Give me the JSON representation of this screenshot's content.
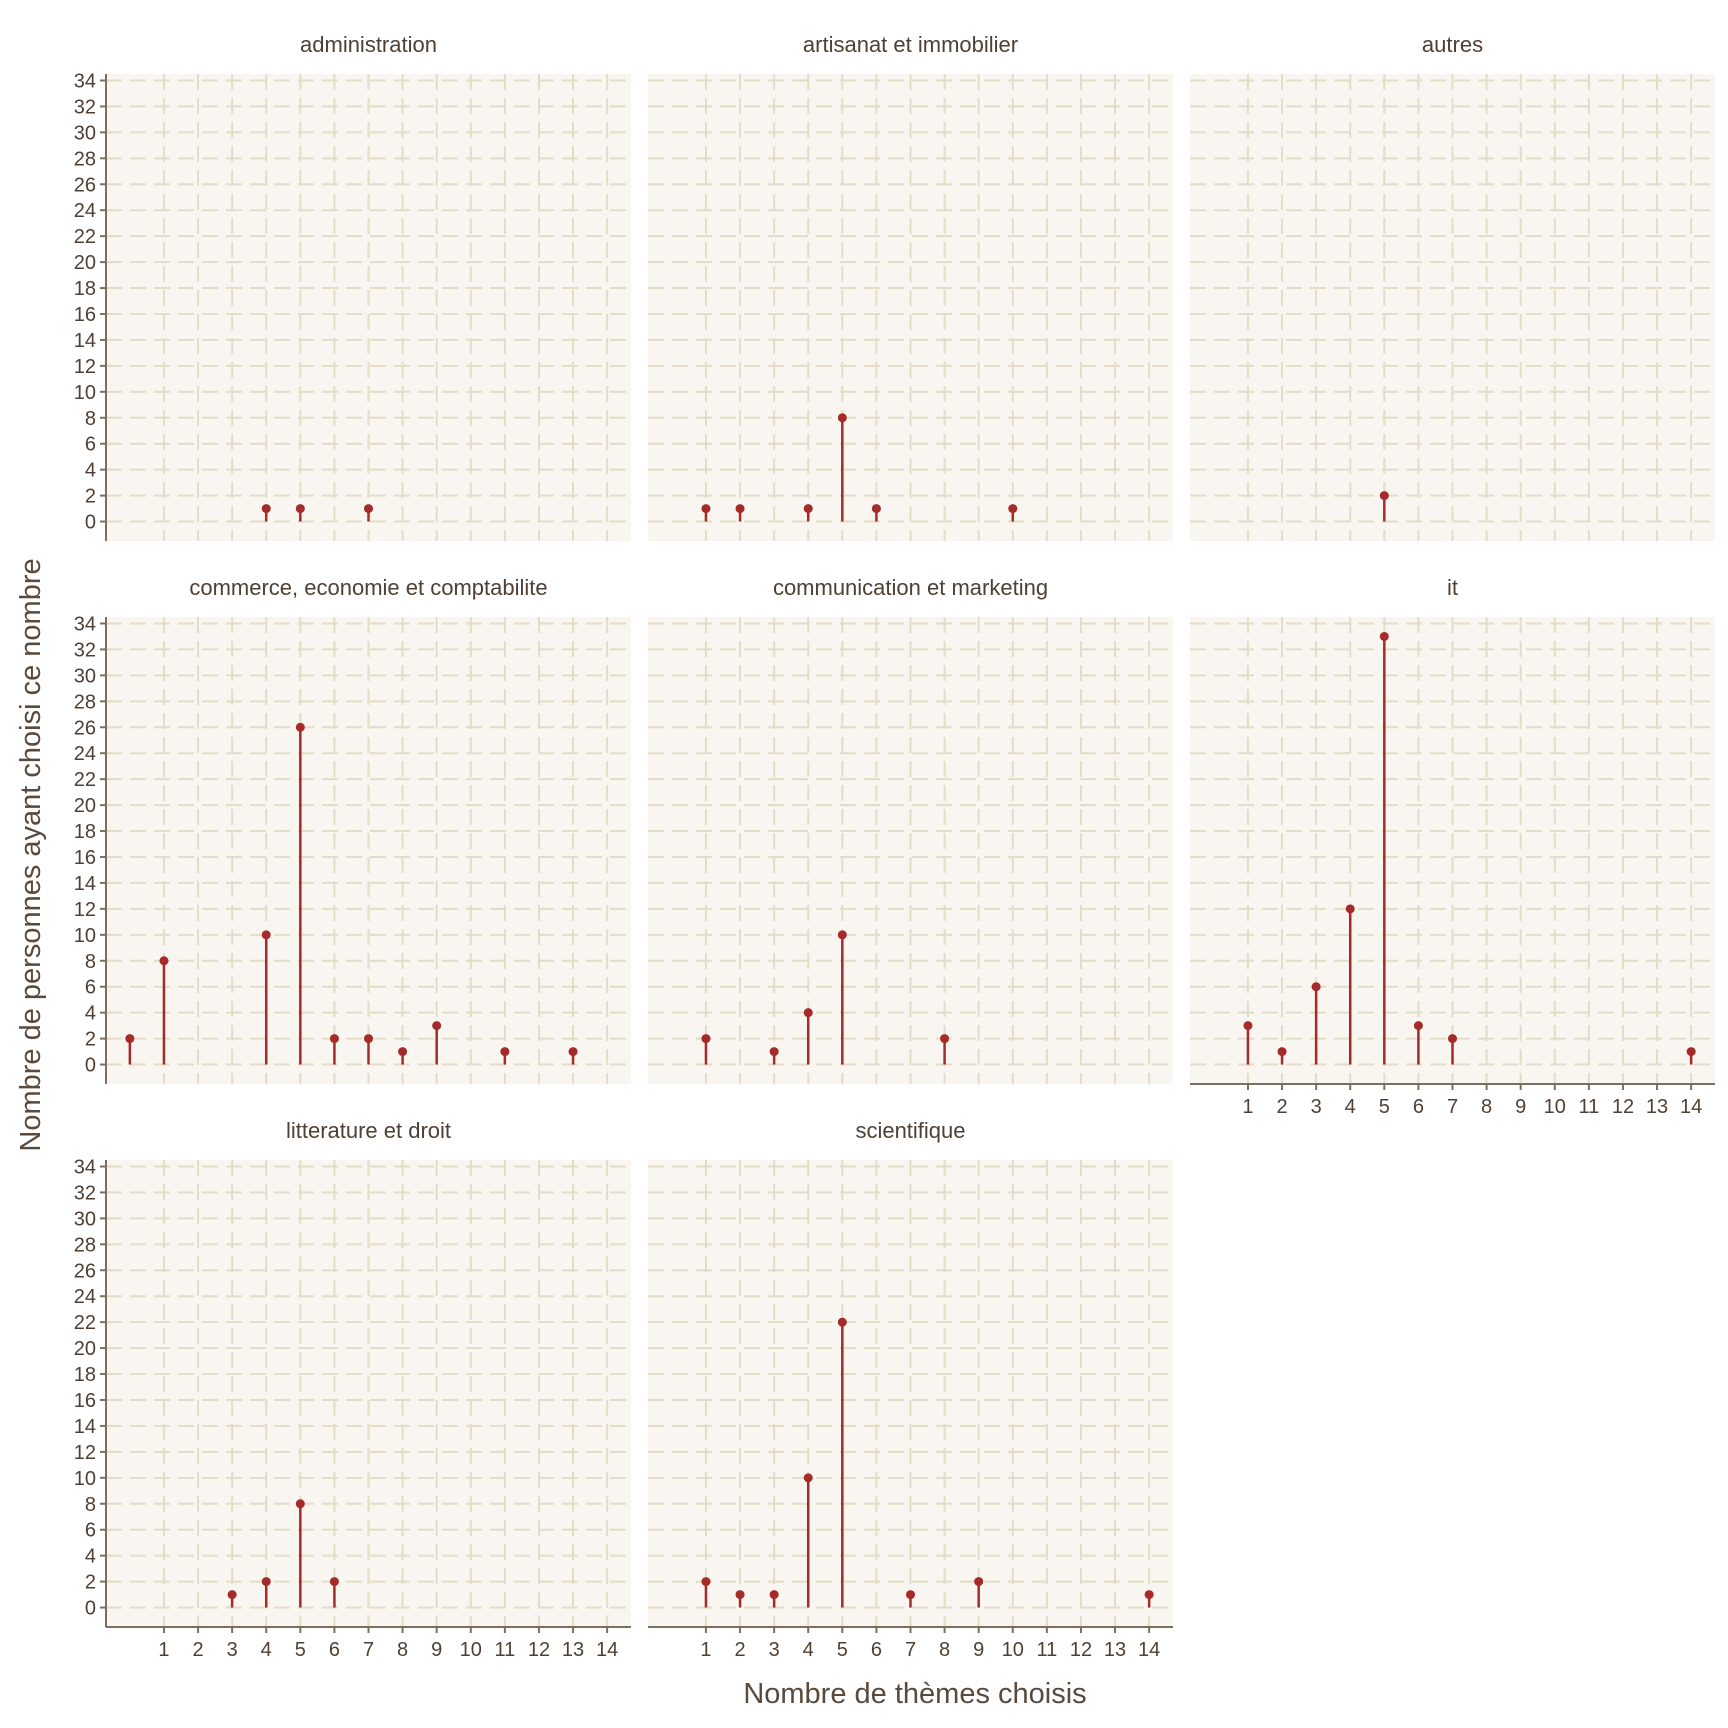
{
  "chart_data": {
    "type": "lollipop",
    "xlabel": "Nombre de thèmes choisis",
    "ylabel": "Nombre de personnes ayant choisi ce nombre",
    "x_ticks": [
      1,
      2,
      3,
      4,
      5,
      6,
      7,
      8,
      9,
      10,
      11,
      12,
      13,
      14
    ],
    "y_ticks": [
      0,
      2,
      4,
      6,
      8,
      10,
      12,
      14,
      16,
      18,
      20,
      22,
      24,
      26,
      28,
      30,
      32,
      34
    ],
    "xlim": [
      -0.7,
      14.7
    ],
    "ylim": [
      -1.5,
      34.5
    ],
    "grid": true,
    "colors": {
      "stem": "#a52a2a",
      "panel": "#f9f5f0",
      "grid": "#e3dcc6",
      "axis": "#7d6e60"
    },
    "panels": [
      {
        "title": "administration",
        "x": [
          4,
          5,
          7
        ],
        "y": [
          1,
          1,
          1
        ]
      },
      {
        "title": "artisanat et immobilier",
        "x": [
          1,
          2,
          4,
          5,
          6,
          10
        ],
        "y": [
          1,
          1,
          1,
          8,
          1,
          1
        ]
      },
      {
        "title": "autres",
        "x": [
          5
        ],
        "y": [
          2
        ]
      },
      {
        "title": "commerce, economie et comptabilite",
        "x": [
          0,
          1,
          4,
          5,
          6,
          7,
          8,
          9,
          11,
          13
        ],
        "y": [
          2,
          8,
          10,
          26,
          2,
          2,
          1,
          3,
          1,
          1
        ]
      },
      {
        "title": "communication et marketing",
        "x": [
          1,
          3,
          4,
          5,
          8
        ],
        "y": [
          2,
          1,
          4,
          10,
          2
        ]
      },
      {
        "title": "it",
        "x": [
          1,
          2,
          3,
          4,
          5,
          6,
          7,
          14
        ],
        "y": [
          3,
          1,
          6,
          12,
          33,
          3,
          2,
          1
        ]
      },
      {
        "title": "litterature et droit",
        "x": [
          3,
          4,
          5,
          6
        ],
        "y": [
          1,
          2,
          8,
          2
        ]
      },
      {
        "title": "scientifique",
        "x": [
          1,
          2,
          3,
          4,
          5,
          7,
          9,
          14
        ],
        "y": [
          2,
          1,
          1,
          10,
          22,
          1,
          2,
          1
        ]
      }
    ]
  }
}
